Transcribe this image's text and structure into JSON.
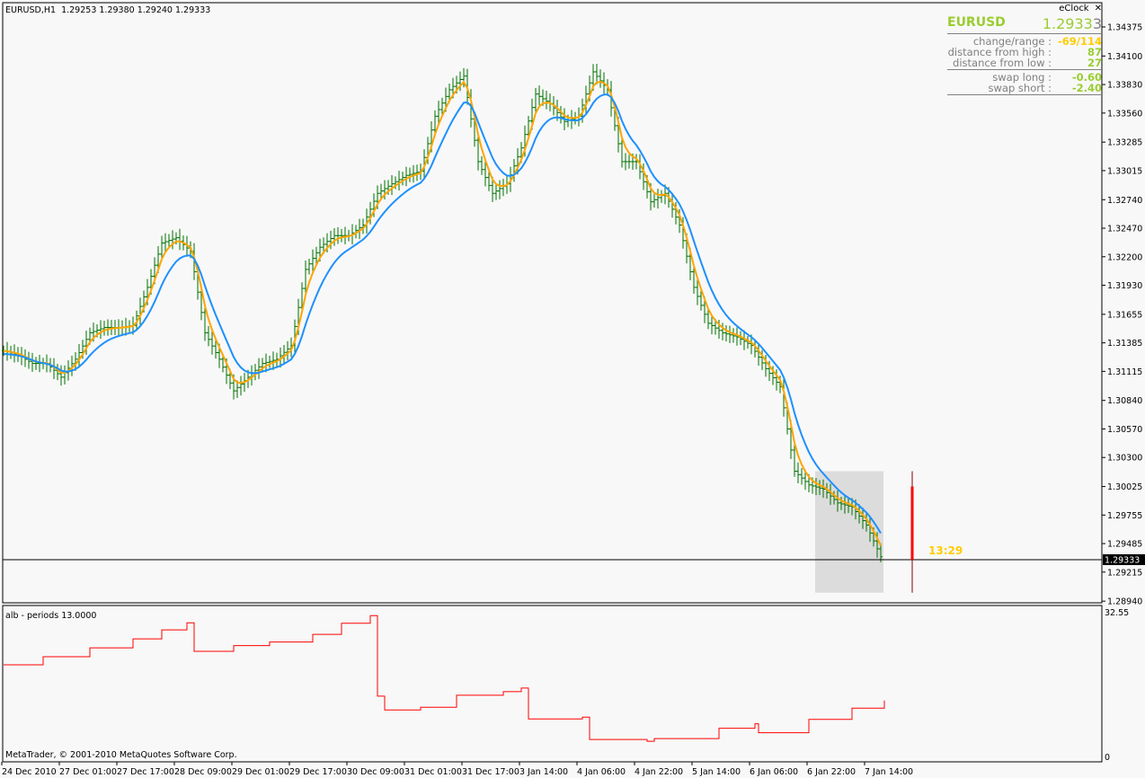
{
  "header": {
    "title": "EURUSD,H1",
    "ohlc": "1.29253 1.29380 1.29240 1.29333"
  },
  "eclock": {
    "title": "eClock",
    "close_icon": "close-icon",
    "symbol": "EURUSD",
    "price_main": "1.2933",
    "price_last_digit": "3",
    "rows1": [
      {
        "label": "change/range :",
        "value": "-69/114",
        "color": "#ffcc00"
      },
      {
        "label": "distance from high :",
        "value": "87",
        "color": "#9acd32"
      },
      {
        "label": "distance from low :",
        "value": "27",
        "color": "#9acd32"
      }
    ],
    "rows2": [
      {
        "label": "swap long :",
        "value": "-0.60",
        "color": "#9acd32"
      },
      {
        "label": "swap short :",
        "value": "-2.40",
        "color": "#9acd32"
      }
    ]
  },
  "timer": "13:29",
  "copyright": "MetaTrader, © 2001-2010 MetaQuotes Software Corp.",
  "indicator": {
    "title": "alb - periods 13.0000",
    "axis_max_label": "32.55",
    "axis_min_label": "0"
  },
  "colors": {
    "bars": "#007000",
    "ma_fast": "#ffa500",
    "ma_slow": "#1e90ff",
    "indicator": "#ff0000",
    "current_price_bg": "#000000",
    "timer": "#ffcc00",
    "live_candle": "#ff0000"
  },
  "chart_data": [
    {
      "type": "ohlc-line",
      "symbol": "EURUSD",
      "timeframe": "H1",
      "current_price": 1.29333,
      "y_ticks": [
        "1.34375",
        "1.34100",
        "1.33830",
        "1.33560",
        "1.33285",
        "1.33015",
        "1.32740",
        "1.32470",
        "1.32200",
        "1.31930",
        "1.31655",
        "1.31385",
        "1.31115",
        "1.30840",
        "1.30570",
        "1.30300",
        "1.30025",
        "1.29755",
        "1.29485",
        "1.29215",
        "1.28940"
      ],
      "ylim": [
        1.2894,
        1.34375
      ],
      "x_ticks": [
        "24 Dec 2010",
        "27 Dec 01:00",
        "27 Dec 17:00",
        "28 Dec 09:00",
        "29 Dec 01:00",
        "29 Dec 17:00",
        "30 Dec 09:00",
        "31 Dec 01:00",
        "31 Dec 17:00",
        "3 Jan 14:00",
        "4 Jan 06:00",
        "4 Jan 22:00",
        "5 Jan 14:00",
        "6 Jan 06:00",
        "6 Jan 22:00",
        "7 Jan 14:00"
      ],
      "closes_every_4_bars": [
        1.3131,
        1.3127,
        1.3119,
        1.3119,
        1.3106,
        1.3123,
        1.3148,
        1.3153,
        1.3153,
        1.3155,
        1.3191,
        1.3233,
        1.3238,
        1.3225,
        1.3148,
        1.3123,
        1.3093,
        1.3106,
        1.3119,
        1.3123,
        1.3136,
        1.3208,
        1.3229,
        1.324,
        1.324,
        1.325,
        1.328,
        1.3289,
        1.3297,
        1.3301,
        1.3353,
        1.3378,
        1.3391,
        1.331,
        1.328,
        1.3289,
        1.3323,
        1.3374,
        1.3365,
        1.3348,
        1.3353,
        1.3395,
        1.3378,
        1.331,
        1.331,
        1.3272,
        1.328,
        1.325,
        1.3191,
        1.3157,
        1.3148,
        1.3144,
        1.3136,
        1.3114,
        1.3097,
        1.3017,
        1.3004,
        1.3,
        1.2987,
        1.2983,
        1.2966,
        1.2936
      ],
      "highlight_box": {
        "from": "6 Jan 22:00",
        "to": "7 Jan 17:00",
        "price_high": 1.3017,
        "price_low": 1.2902
      },
      "live_candle": {
        "open": 1.30025,
        "close": 1.29333,
        "high": 1.3017,
        "low": 1.2902
      }
    },
    {
      "type": "step-line",
      "name": "alb - periods 13.0000",
      "ylim": [
        0,
        32.55
      ],
      "points": [
        [
          0,
          20.7
        ],
        [
          11,
          22.5
        ],
        [
          24,
          24.5
        ],
        [
          36,
          26.5
        ],
        [
          44,
          28.5
        ],
        [
          51,
          30.1
        ],
        [
          53,
          23.7
        ],
        [
          64,
          25
        ],
        [
          74,
          25.8
        ],
        [
          86,
          27.5
        ],
        [
          94,
          30
        ],
        [
          102,
          31.7
        ],
        [
          104,
          13.7
        ],
        [
          106,
          10.6
        ],
        [
          116,
          11.2
        ],
        [
          126,
          13.9
        ],
        [
          139,
          14.7
        ],
        [
          144,
          15.5
        ],
        [
          146,
          8.6
        ],
        [
          161,
          9
        ],
        [
          163,
          4
        ],
        [
          179,
          3.6
        ],
        [
          181,
          4.2
        ],
        [
          199,
          6.5
        ],
        [
          209,
          7.5
        ],
        [
          210,
          5.5
        ],
        [
          224,
          8.5
        ],
        [
          236,
          11
        ],
        [
          245,
          12.7
        ]
      ]
    }
  ]
}
